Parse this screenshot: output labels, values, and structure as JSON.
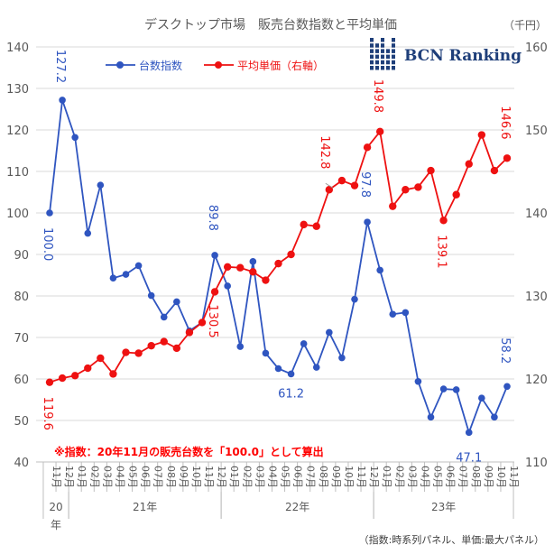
{
  "chart_data": {
    "type": "line",
    "title": "デスクトップ市場　販売台数指数と平均単価",
    "unit_right": "（千円）",
    "legend_position": "top",
    "yleft": {
      "min": 40,
      "max": 140,
      "step": 10
    },
    "yright": {
      "min": 110,
      "max": 160,
      "step": 10
    },
    "categories": [
      "11月",
      "12月",
      "01月",
      "02月",
      "03月",
      "04月",
      "05月",
      "06月",
      "07月",
      "08月",
      "09月",
      "10月",
      "11月",
      "12月",
      "01月",
      "02月",
      "03月",
      "04月",
      "05月",
      "06月",
      "07月",
      "08月",
      "09月",
      "10月",
      "11月",
      "12月",
      "01月",
      "02月",
      "03月",
      "04月",
      "05月",
      "06月",
      "07月",
      "08月",
      "09月",
      "10月",
      "11月"
    ],
    "years": [
      {
        "label": "20年",
        "start": 0,
        "end": 1
      },
      {
        "label": "21年",
        "start": 2,
        "end": 13
      },
      {
        "label": "22年",
        "start": 14,
        "end": 25
      },
      {
        "label": "23年",
        "start": 26,
        "end": 36
      }
    ],
    "series": [
      {
        "name": "台数指数",
        "axis": "left",
        "color": "#2f55c0",
        "values": [
          100.0,
          127.2,
          118.2,
          95.1,
          106.7,
          84.3,
          85.2,
          87.3,
          80.1,
          74.9,
          78.6,
          71.6,
          73.6,
          89.8,
          82.4,
          67.8,
          88.3,
          66.2,
          62.5,
          61.2,
          68.5,
          62.8,
          71.2,
          65.1,
          79.2,
          97.8,
          86.2,
          75.6,
          76.0,
          59.4,
          50.8,
          57.6,
          57.4,
          47.1,
          55.4,
          50.8,
          58.2
        ]
      },
      {
        "name": "平均単価（右軸）",
        "axis": "right",
        "color": "#ee1111",
        "values": [
          119.6,
          120.1,
          120.4,
          121.3,
          122.5,
          120.6,
          123.2,
          123.1,
          124.0,
          124.5,
          123.7,
          125.6,
          126.8,
          130.5,
          133.5,
          133.4,
          132.9,
          131.9,
          133.9,
          135.0,
          138.6,
          138.4,
          142.8,
          143.9,
          143.3,
          147.9,
          149.8,
          140.8,
          142.8,
          143.1,
          145.1,
          139.1,
          142.2,
          145.9,
          149.4,
          145.1,
          146.6
        ]
      }
    ],
    "data_labels": [
      {
        "series": 0,
        "index": 0,
        "text": "100.0"
      },
      {
        "series": 0,
        "index": 1,
        "text": "127.2"
      },
      {
        "series": 0,
        "index": 13,
        "text": "89.8"
      },
      {
        "series": 0,
        "index": 19,
        "text": "61.2"
      },
      {
        "series": 0,
        "index": 25,
        "text": "97.8"
      },
      {
        "series": 0,
        "index": 33,
        "text": "47.1"
      },
      {
        "series": 0,
        "index": 36,
        "text": "58.2"
      },
      {
        "series": 1,
        "index": 0,
        "text": "119.6"
      },
      {
        "series": 1,
        "index": 13,
        "text": "130.5"
      },
      {
        "series": 1,
        "index": 22,
        "text": "142.8"
      },
      {
        "series": 1,
        "index": 26,
        "text": "149.8"
      },
      {
        "series": 1,
        "index": 31,
        "text": "139.1"
      },
      {
        "series": 1,
        "index": 36,
        "text": "146.6"
      }
    ]
  },
  "logo": {
    "text": "BCN Ranking"
  },
  "note": "※指数：20年11月の販売台数を「100.0」として算出",
  "source": "（指数:時系列パネル、単価:最大パネル）",
  "colors": {
    "blue": "#2f55c0",
    "red": "#ee1111",
    "grid": "#d9d9d9",
    "navy": "#1f3f7a"
  }
}
